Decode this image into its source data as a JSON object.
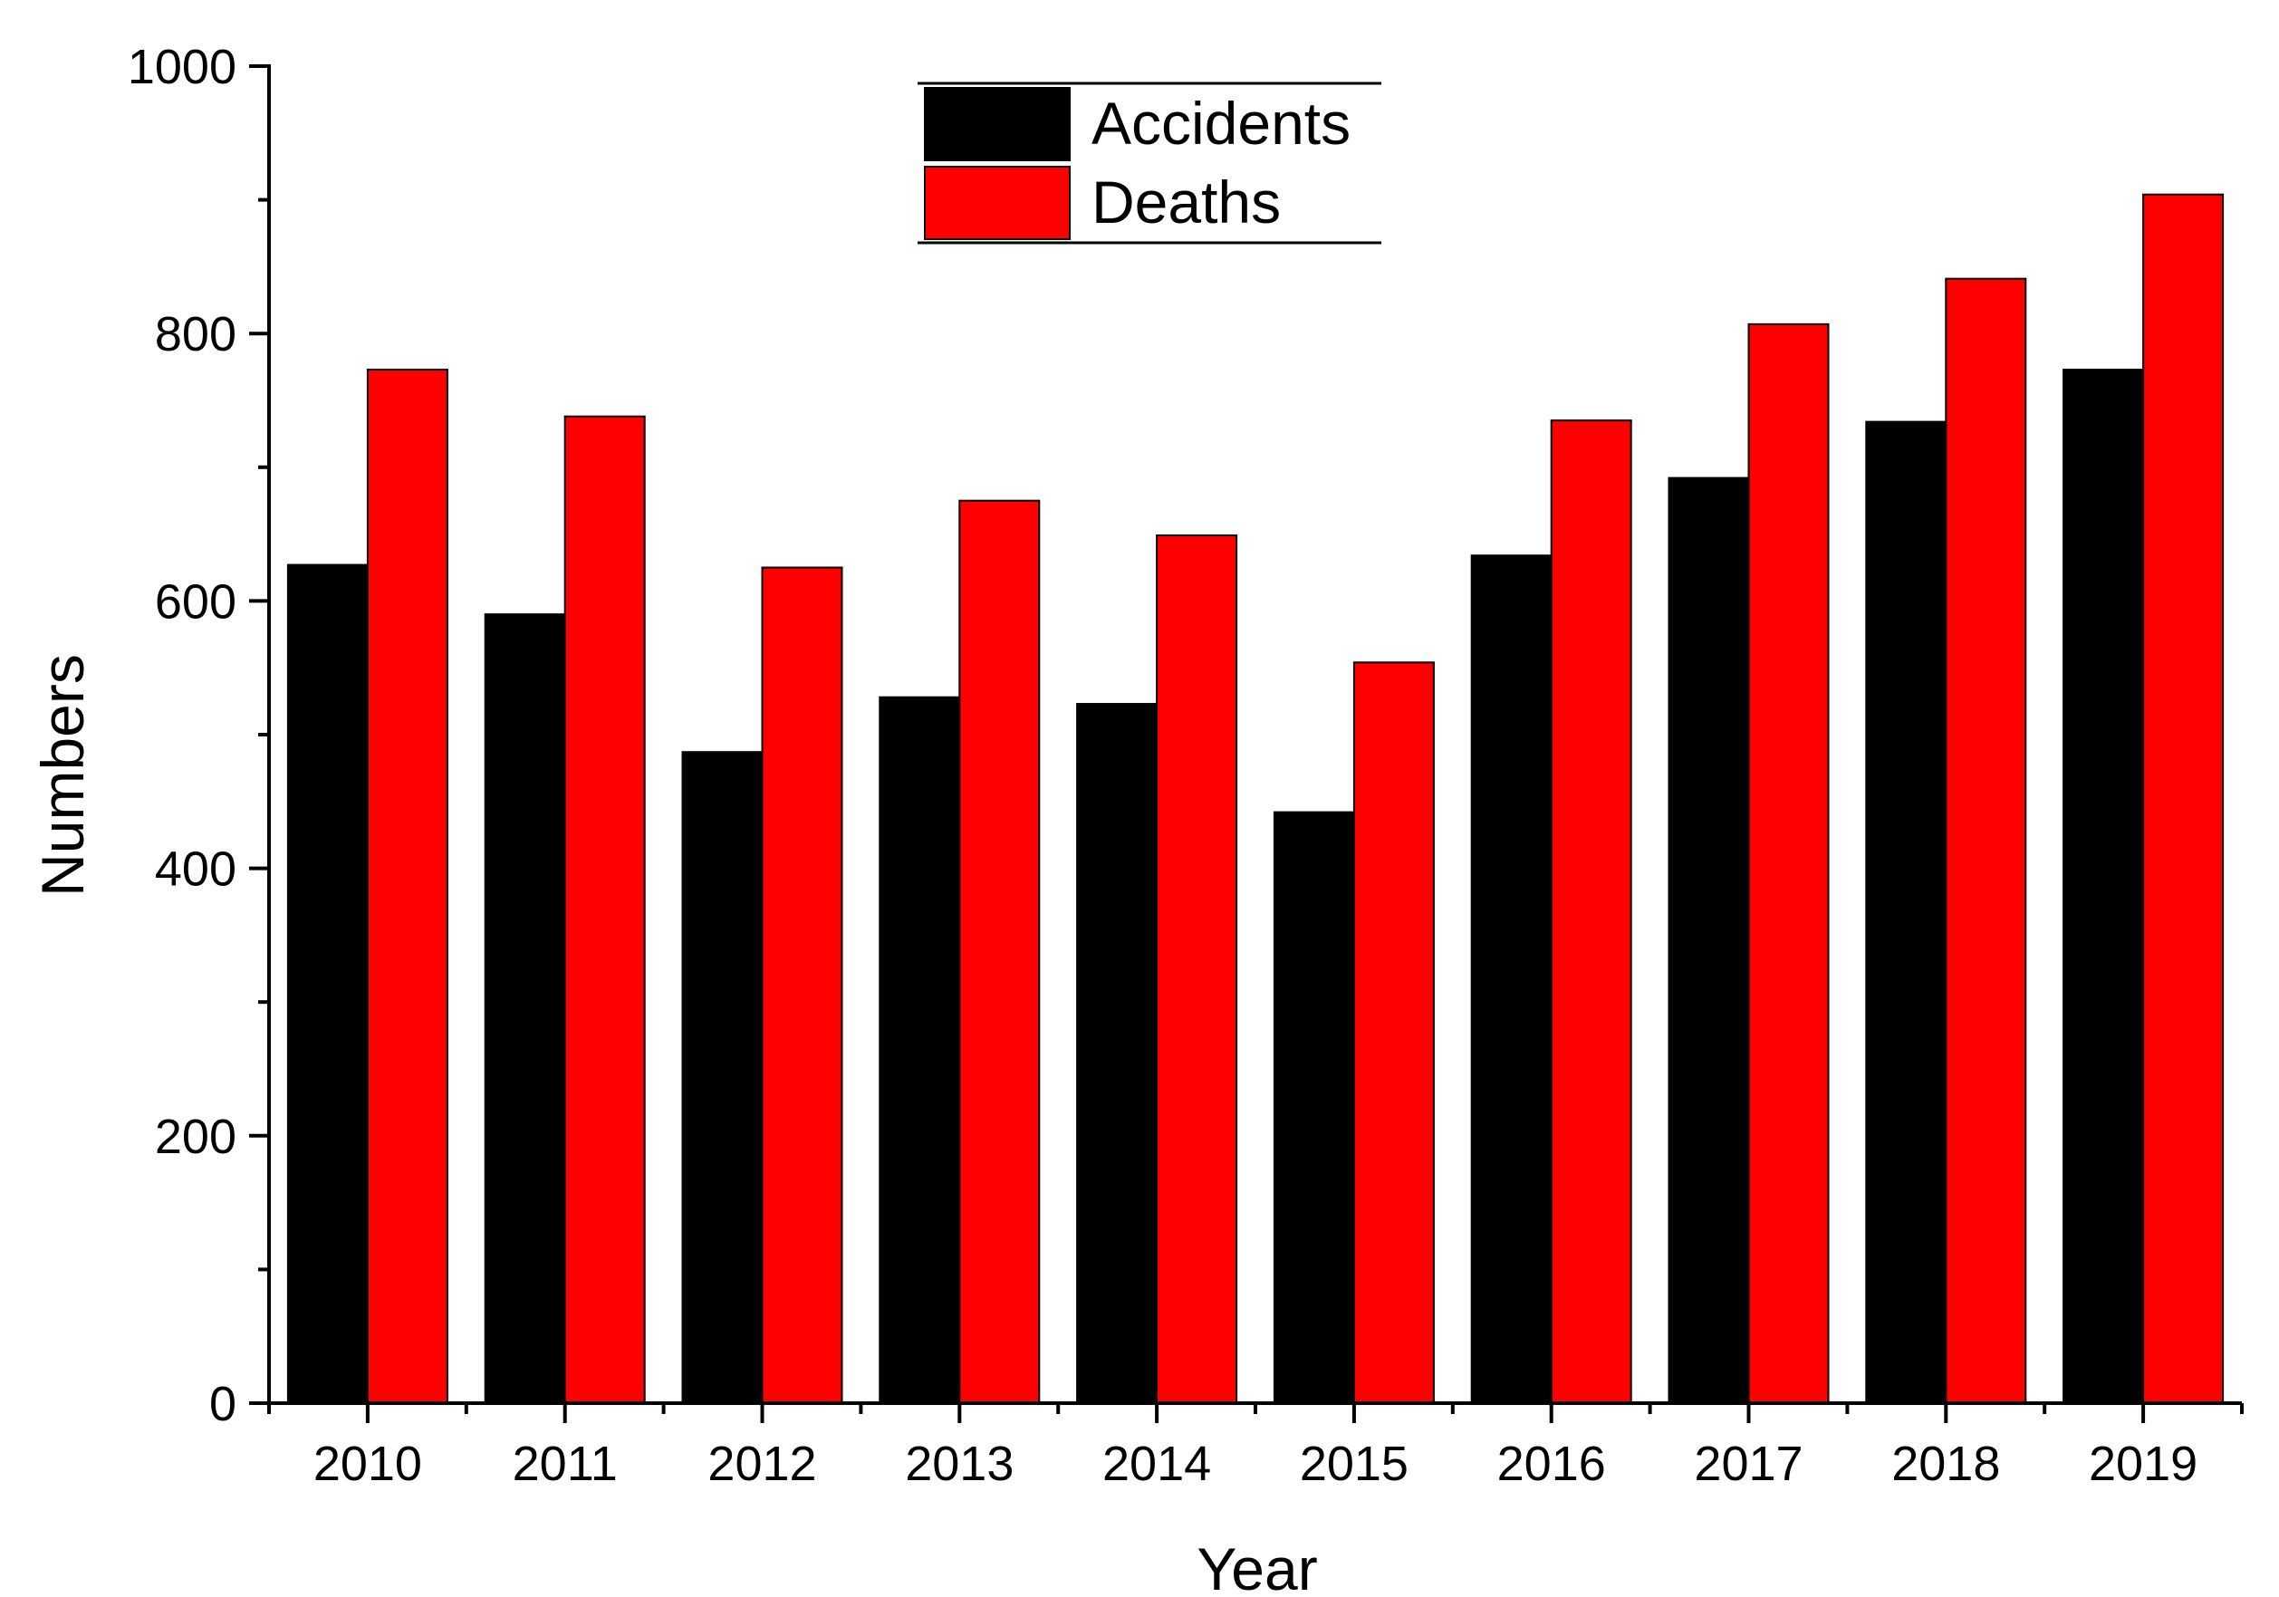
{
  "chart_data": {
    "type": "bar",
    "title": "",
    "xlabel": "Year",
    "ylabel": "Numbers",
    "ylim": [
      0,
      1000
    ],
    "yticks": [
      "0",
      "200",
      "400",
      "600",
      "800",
      "1000"
    ],
    "categories": [
      "2010",
      "2011",
      "2012",
      "2013",
      "2014",
      "2015",
      "2016",
      "2017",
      "2018",
      "2019"
    ],
    "series": [
      {
        "name": "Accidents",
        "color": "#000000",
        "values": [
          627,
          590,
          487,
          528,
          523,
          442,
          634,
          692,
          734,
          773
        ]
      },
      {
        "name": "Deaths",
        "color": "#ff0000",
        "values": [
          773,
          738,
          625,
          675,
          649,
          554,
          735,
          807,
          841,
          904
        ]
      }
    ],
    "legend": {
      "position": "top-center"
    },
    "grid": false
  }
}
